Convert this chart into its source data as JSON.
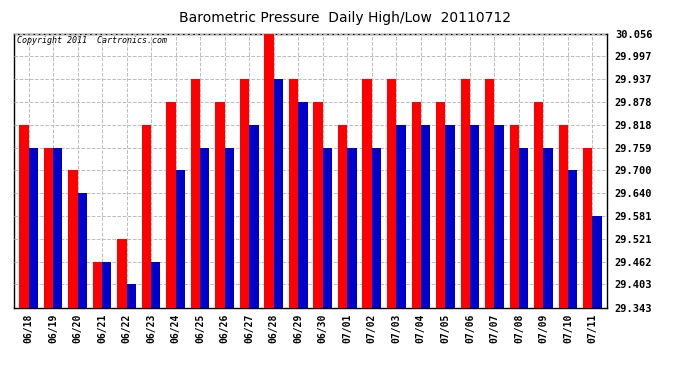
{
  "title": "Barometric Pressure  Daily High/Low  20110712",
  "copyright": "Copyright 2011  Cartronics.com",
  "categories": [
    "06/18",
    "06/19",
    "06/20",
    "06/21",
    "06/22",
    "06/23",
    "06/24",
    "06/25",
    "06/26",
    "06/27",
    "06/28",
    "06/29",
    "06/30",
    "07/01",
    "07/02",
    "07/03",
    "07/04",
    "07/05",
    "07/06",
    "07/07",
    "07/08",
    "07/09",
    "07/10",
    "07/11"
  ],
  "highs": [
    29.818,
    29.759,
    29.7,
    29.462,
    29.521,
    29.818,
    29.878,
    29.937,
    29.878,
    29.937,
    30.056,
    29.937,
    29.878,
    29.818,
    29.937,
    29.937,
    29.878,
    29.878,
    29.937,
    29.937,
    29.818,
    29.878,
    29.818,
    29.759
  ],
  "lows": [
    29.759,
    29.759,
    29.64,
    29.462,
    29.403,
    29.462,
    29.7,
    29.759,
    29.759,
    29.818,
    29.937,
    29.878,
    29.759,
    29.759,
    29.759,
    29.818,
    29.818,
    29.818,
    29.818,
    29.818,
    29.759,
    29.759,
    29.7,
    29.581
  ],
  "high_color": "#FF0000",
  "low_color": "#0000CC",
  "bg_color": "#FFFFFF",
  "plot_bg": "#FFFFFF",
  "grid_color": "#AAAAAA",
  "yticks": [
    29.343,
    29.403,
    29.462,
    29.521,
    29.581,
    29.64,
    29.7,
    29.759,
    29.818,
    29.878,
    29.937,
    29.997,
    30.056
  ],
  "ymin": 29.343,
  "ymax": 30.056,
  "bar_width": 0.38,
  "figwidth": 6.9,
  "figheight": 3.75,
  "dpi": 100
}
